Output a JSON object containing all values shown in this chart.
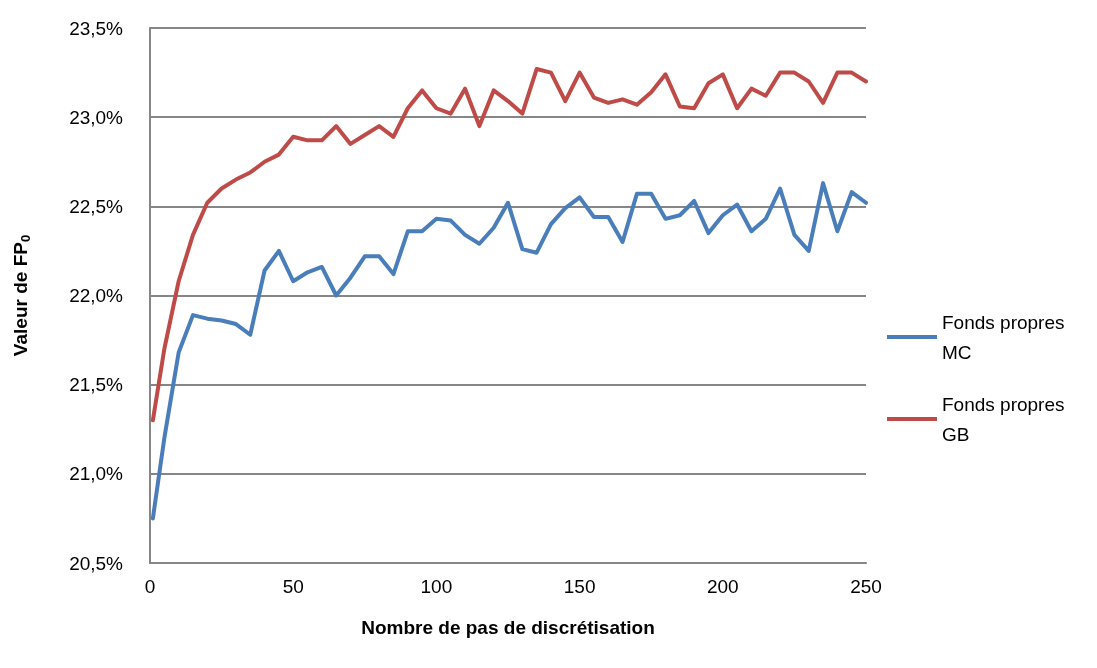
{
  "chart_data": {
    "type": "line",
    "xlabel": "Nombre de pas de discrétisation",
    "ylabel": "Valeur de FP$_{0}$",
    "x": [
      1,
      5,
      10,
      15,
      20,
      25,
      30,
      35,
      40,
      45,
      50,
      55,
      60,
      65,
      70,
      75,
      80,
      85,
      90,
      95,
      100,
      105,
      110,
      115,
      120,
      125,
      130,
      135,
      140,
      145,
      150,
      155,
      160,
      165,
      170,
      175,
      180,
      185,
      190,
      195,
      200,
      205,
      210,
      215,
      220,
      225,
      230,
      235,
      240,
      245,
      250
    ],
    "series": [
      {
        "name": "Fonds propres MC",
        "color": "#4a7ebb",
        "values": [
          20.75,
          21.2,
          21.68,
          21.89,
          21.87,
          21.86,
          21.84,
          21.78,
          22.14,
          22.25,
          22.08,
          22.13,
          22.16,
          22.0,
          22.1,
          22.22,
          22.22,
          22.12,
          22.36,
          22.36,
          22.43,
          22.42,
          22.34,
          22.29,
          22.38,
          22.52,
          22.26,
          22.24,
          22.4,
          22.49,
          22.55,
          22.44,
          22.44,
          22.3,
          22.57,
          22.57,
          22.43,
          22.45,
          22.53,
          22.35,
          22.45,
          22.51,
          22.36,
          22.43,
          22.6,
          22.34,
          22.25,
          22.63,
          22.36,
          22.58,
          22.52
        ]
      },
      {
        "name": "Fonds propres GB",
        "color": "#be4b48",
        "values": [
          21.3,
          21.7,
          22.08,
          22.34,
          22.52,
          22.6,
          22.65,
          22.69,
          22.75,
          22.79,
          22.89,
          22.87,
          22.87,
          22.95,
          22.85,
          22.9,
          22.95,
          22.89,
          23.05,
          23.15,
          23.05,
          23.02,
          23.16,
          22.95,
          23.15,
          23.09,
          23.02,
          23.27,
          23.25,
          23.09,
          23.25,
          23.11,
          23.08,
          23.1,
          23.07,
          23.14,
          23.24,
          23.06,
          23.05,
          23.19,
          23.24,
          23.05,
          23.16,
          23.12,
          23.25,
          23.25,
          23.2,
          23.08,
          23.25,
          23.25,
          23.2
        ]
      }
    ],
    "xlim": [
      0,
      250
    ],
    "xticks": [
      0,
      50,
      100,
      150,
      200,
      250
    ],
    "ylim": [
      20.5,
      23.5
    ],
    "yticks": [
      {
        "value": 20.5,
        "label": "20,5%"
      },
      {
        "value": 21,
        "label": "21,0%"
      },
      {
        "value": 21.5,
        "label": "21,5%"
      },
      {
        "value": 22,
        "label": "22,0%"
      },
      {
        "value": 22.5,
        "label": "22,5%"
      },
      {
        "value": 23,
        "label": "23,0%"
      },
      {
        "value": 23.5,
        "label": "23,5%"
      }
    ],
    "grid": "y",
    "legend": "right",
    "marker": "none",
    "line_style": "solid"
  }
}
